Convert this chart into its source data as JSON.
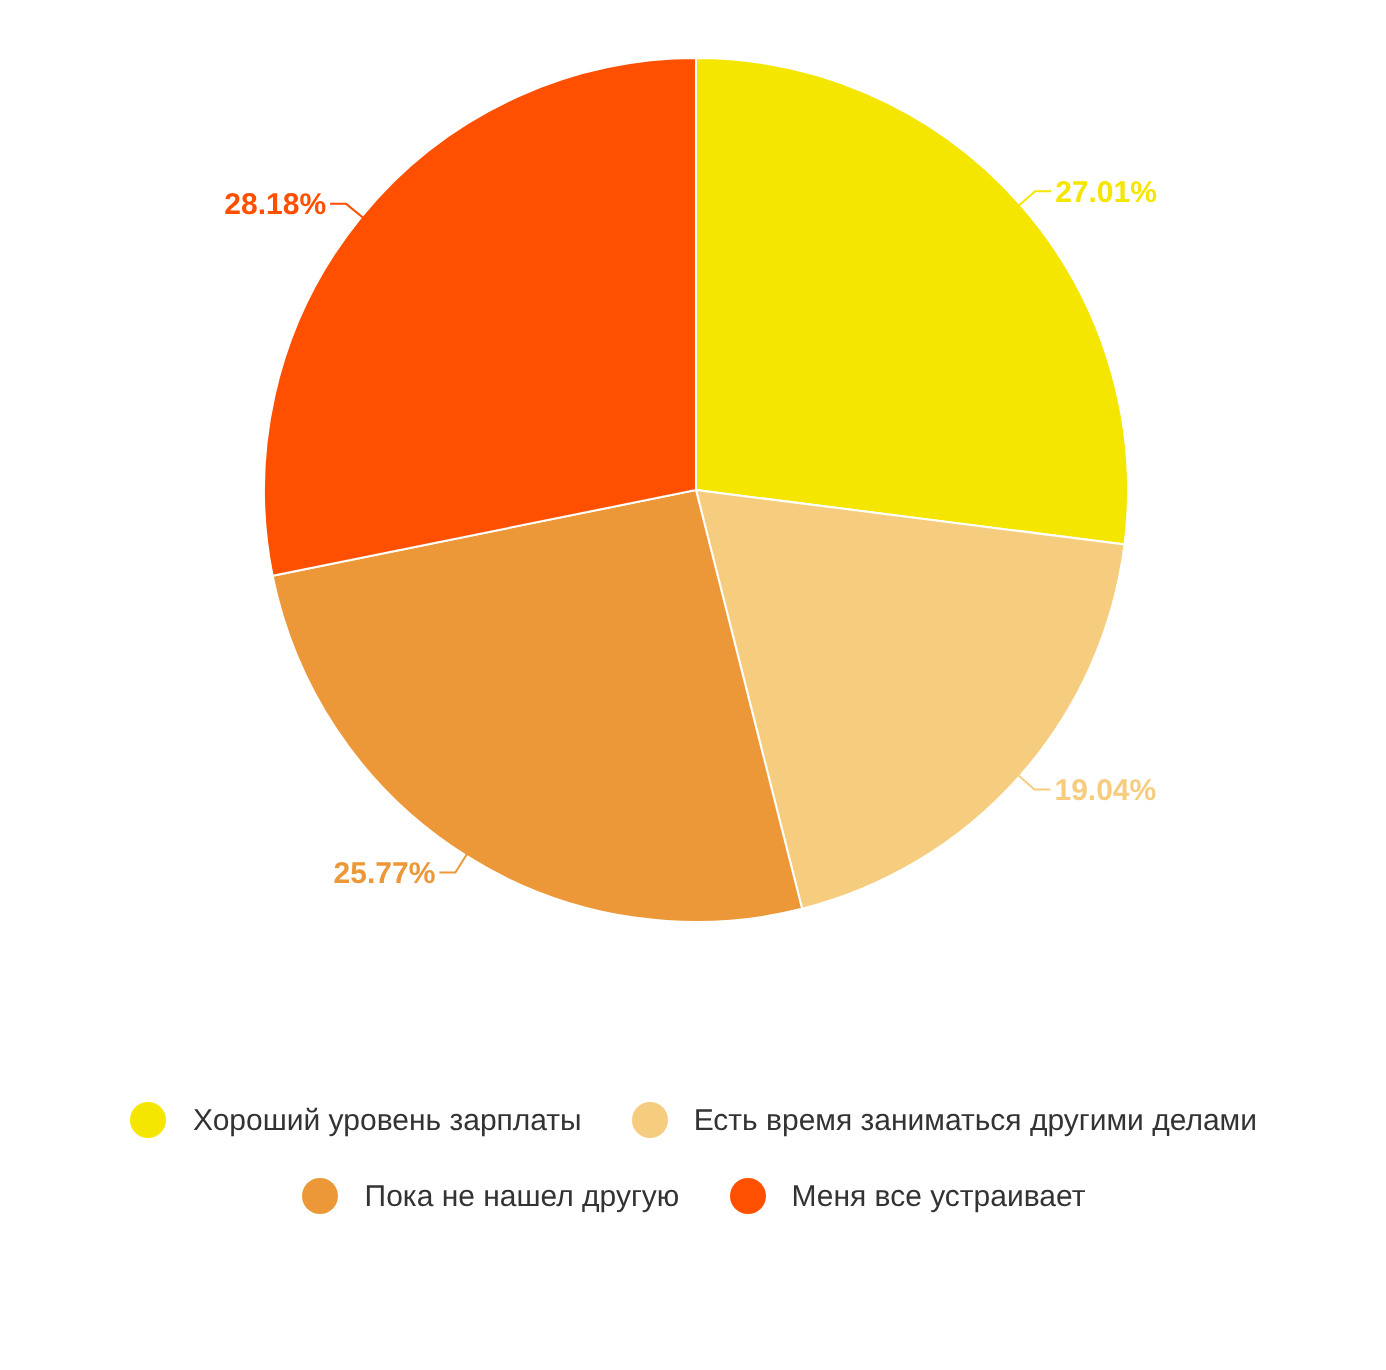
{
  "chart_data": {
    "type": "pie",
    "categories": [
      "Хороший уровень зарплаты",
      "Есть время заниматься другими делами",
      "Пока не нашел другую",
      "Меня все устраивает"
    ],
    "values": [
      27.01,
      19.04,
      25.77,
      28.18
    ],
    "colors": [
      "#f5e600",
      "#f6cd7f",
      "#ed9838",
      "#fe5000"
    ],
    "value_labels": [
      "27.01%",
      "19.04%",
      "25.77%",
      "28.18%"
    ],
    "legend": "bottom"
  }
}
